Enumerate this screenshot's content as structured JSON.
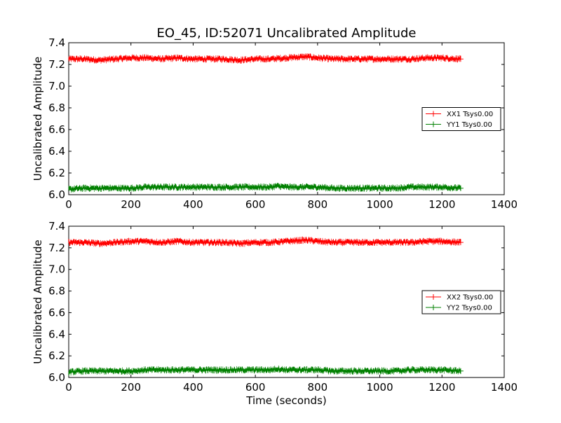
{
  "chart_data": [
    {
      "type": "line",
      "title": "EO_45, ID:52071 Uncalibrated Amplitude",
      "xlabel": "",
      "ylabel": "Uncalibrated Amplitude",
      "xlim": [
        0,
        1400
      ],
      "ylim": [
        6.0,
        7.4
      ],
      "xticks": [
        "0",
        "200",
        "400",
        "600",
        "800",
        "1000",
        "1200",
        "1400"
      ],
      "yticks": [
        "6.0",
        "6.2",
        "6.4",
        "6.6",
        "6.8",
        "7.0",
        "7.2",
        "7.4"
      ],
      "legend_position": "center-right",
      "grid": false,
      "series": [
        {
          "name": "XX1 Tsys0.00",
          "color": "#ff0000",
          "x": [
            0,
            50,
            100,
            150,
            200,
            250,
            300,
            350,
            400,
            450,
            500,
            550,
            600,
            650,
            700,
            750,
            770,
            800,
            850,
            900,
            950,
            1000,
            1050,
            1100,
            1150,
            1200,
            1260
          ],
          "y": [
            7.25,
            7.25,
            7.24,
            7.25,
            7.26,
            7.26,
            7.25,
            7.26,
            7.25,
            7.25,
            7.25,
            7.24,
            7.25,
            7.25,
            7.26,
            7.27,
            7.27,
            7.26,
            7.25,
            7.25,
            7.25,
            7.25,
            7.25,
            7.25,
            7.26,
            7.26,
            7.25
          ]
        },
        {
          "name": "YY1 Tsys0.00",
          "color": "#008000",
          "x": [
            0,
            50,
            100,
            150,
            200,
            250,
            300,
            350,
            400,
            450,
            500,
            550,
            600,
            650,
            670,
            700,
            750,
            800,
            850,
            900,
            950,
            1000,
            1050,
            1100,
            1150,
            1200,
            1260
          ],
          "y": [
            6.05,
            6.06,
            6.06,
            6.06,
            6.06,
            6.07,
            6.07,
            6.07,
            6.07,
            6.07,
            6.07,
            6.07,
            6.07,
            6.07,
            6.08,
            6.07,
            6.07,
            6.07,
            6.06,
            6.06,
            6.06,
            6.06,
            6.06,
            6.07,
            6.07,
            6.07,
            6.06
          ]
        }
      ]
    },
    {
      "type": "line",
      "title": "",
      "xlabel": "Time (seconds)",
      "ylabel": "Uncalibrated Amplitude",
      "xlim": [
        0,
        1400
      ],
      "ylim": [
        6.0,
        7.4
      ],
      "xticks": [
        "0",
        "200",
        "400",
        "600",
        "800",
        "1000",
        "1200",
        "1400"
      ],
      "yticks": [
        "6.0",
        "6.2",
        "6.4",
        "6.6",
        "6.8",
        "7.0",
        "7.2",
        "7.4"
      ],
      "legend_position": "center-right",
      "grid": false,
      "series": [
        {
          "name": "XX2 Tsys0.00",
          "color": "#ff0000",
          "x": [
            0,
            50,
            100,
            150,
            200,
            250,
            300,
            350,
            400,
            450,
            500,
            550,
            600,
            650,
            700,
            750,
            770,
            800,
            850,
            900,
            950,
            1000,
            1050,
            1100,
            1150,
            1200,
            1260
          ],
          "y": [
            7.25,
            7.25,
            7.24,
            7.25,
            7.26,
            7.26,
            7.25,
            7.26,
            7.25,
            7.25,
            7.25,
            7.24,
            7.25,
            7.25,
            7.26,
            7.27,
            7.27,
            7.26,
            7.25,
            7.25,
            7.25,
            7.25,
            7.25,
            7.25,
            7.26,
            7.26,
            7.25
          ]
        },
        {
          "name": "YY2 Tsys0.00",
          "color": "#008000",
          "x": [
            0,
            50,
            100,
            150,
            200,
            250,
            300,
            350,
            400,
            450,
            500,
            550,
            600,
            650,
            670,
            700,
            750,
            800,
            850,
            900,
            950,
            1000,
            1050,
            1100,
            1150,
            1200,
            1260
          ],
          "y": [
            6.05,
            6.06,
            6.06,
            6.06,
            6.06,
            6.07,
            6.07,
            6.07,
            6.07,
            6.07,
            6.07,
            6.07,
            6.07,
            6.07,
            6.08,
            6.07,
            6.07,
            6.07,
            6.06,
            6.06,
            6.06,
            6.06,
            6.06,
            6.07,
            6.07,
            6.07,
            6.06
          ]
        }
      ]
    }
  ]
}
